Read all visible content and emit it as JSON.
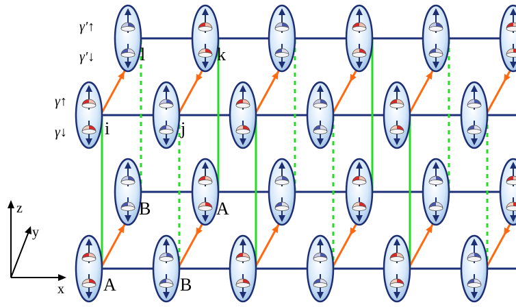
{
  "colors": {
    "rung": "#1f2f78",
    "green": "#22dd22",
    "orange": "#ff6a10",
    "ellipse_fill": "#cfe3f7",
    "ellipse_stroke": "#1d2f73",
    "arrow": "#1d2f73",
    "red": "#d62a2a",
    "blue_dome": "#4a56a8",
    "pale": "#eeeeee"
  },
  "labels": {
    "gamma_up_prime": "γ′↑",
    "gamma_down_prime": "γ′↓",
    "gamma_up": "γ↑",
    "gamma_down": "γ↓",
    "site_i": "i",
    "site_j": "j",
    "site_k": "k",
    "site_l": "l",
    "sub_A_upper": "A",
    "sub_B_upper": "B",
    "sub_A_lower": "A",
    "sub_B_lower": "B"
  },
  "axes": {
    "z": "z",
    "y": "y",
    "x": "x"
  },
  "icons": [
    "majorana-spin-ellipse-icon",
    "red-dome-icon",
    "blue-dome-icon",
    "up-arrow-icon",
    "down-arrow-icon"
  ]
}
